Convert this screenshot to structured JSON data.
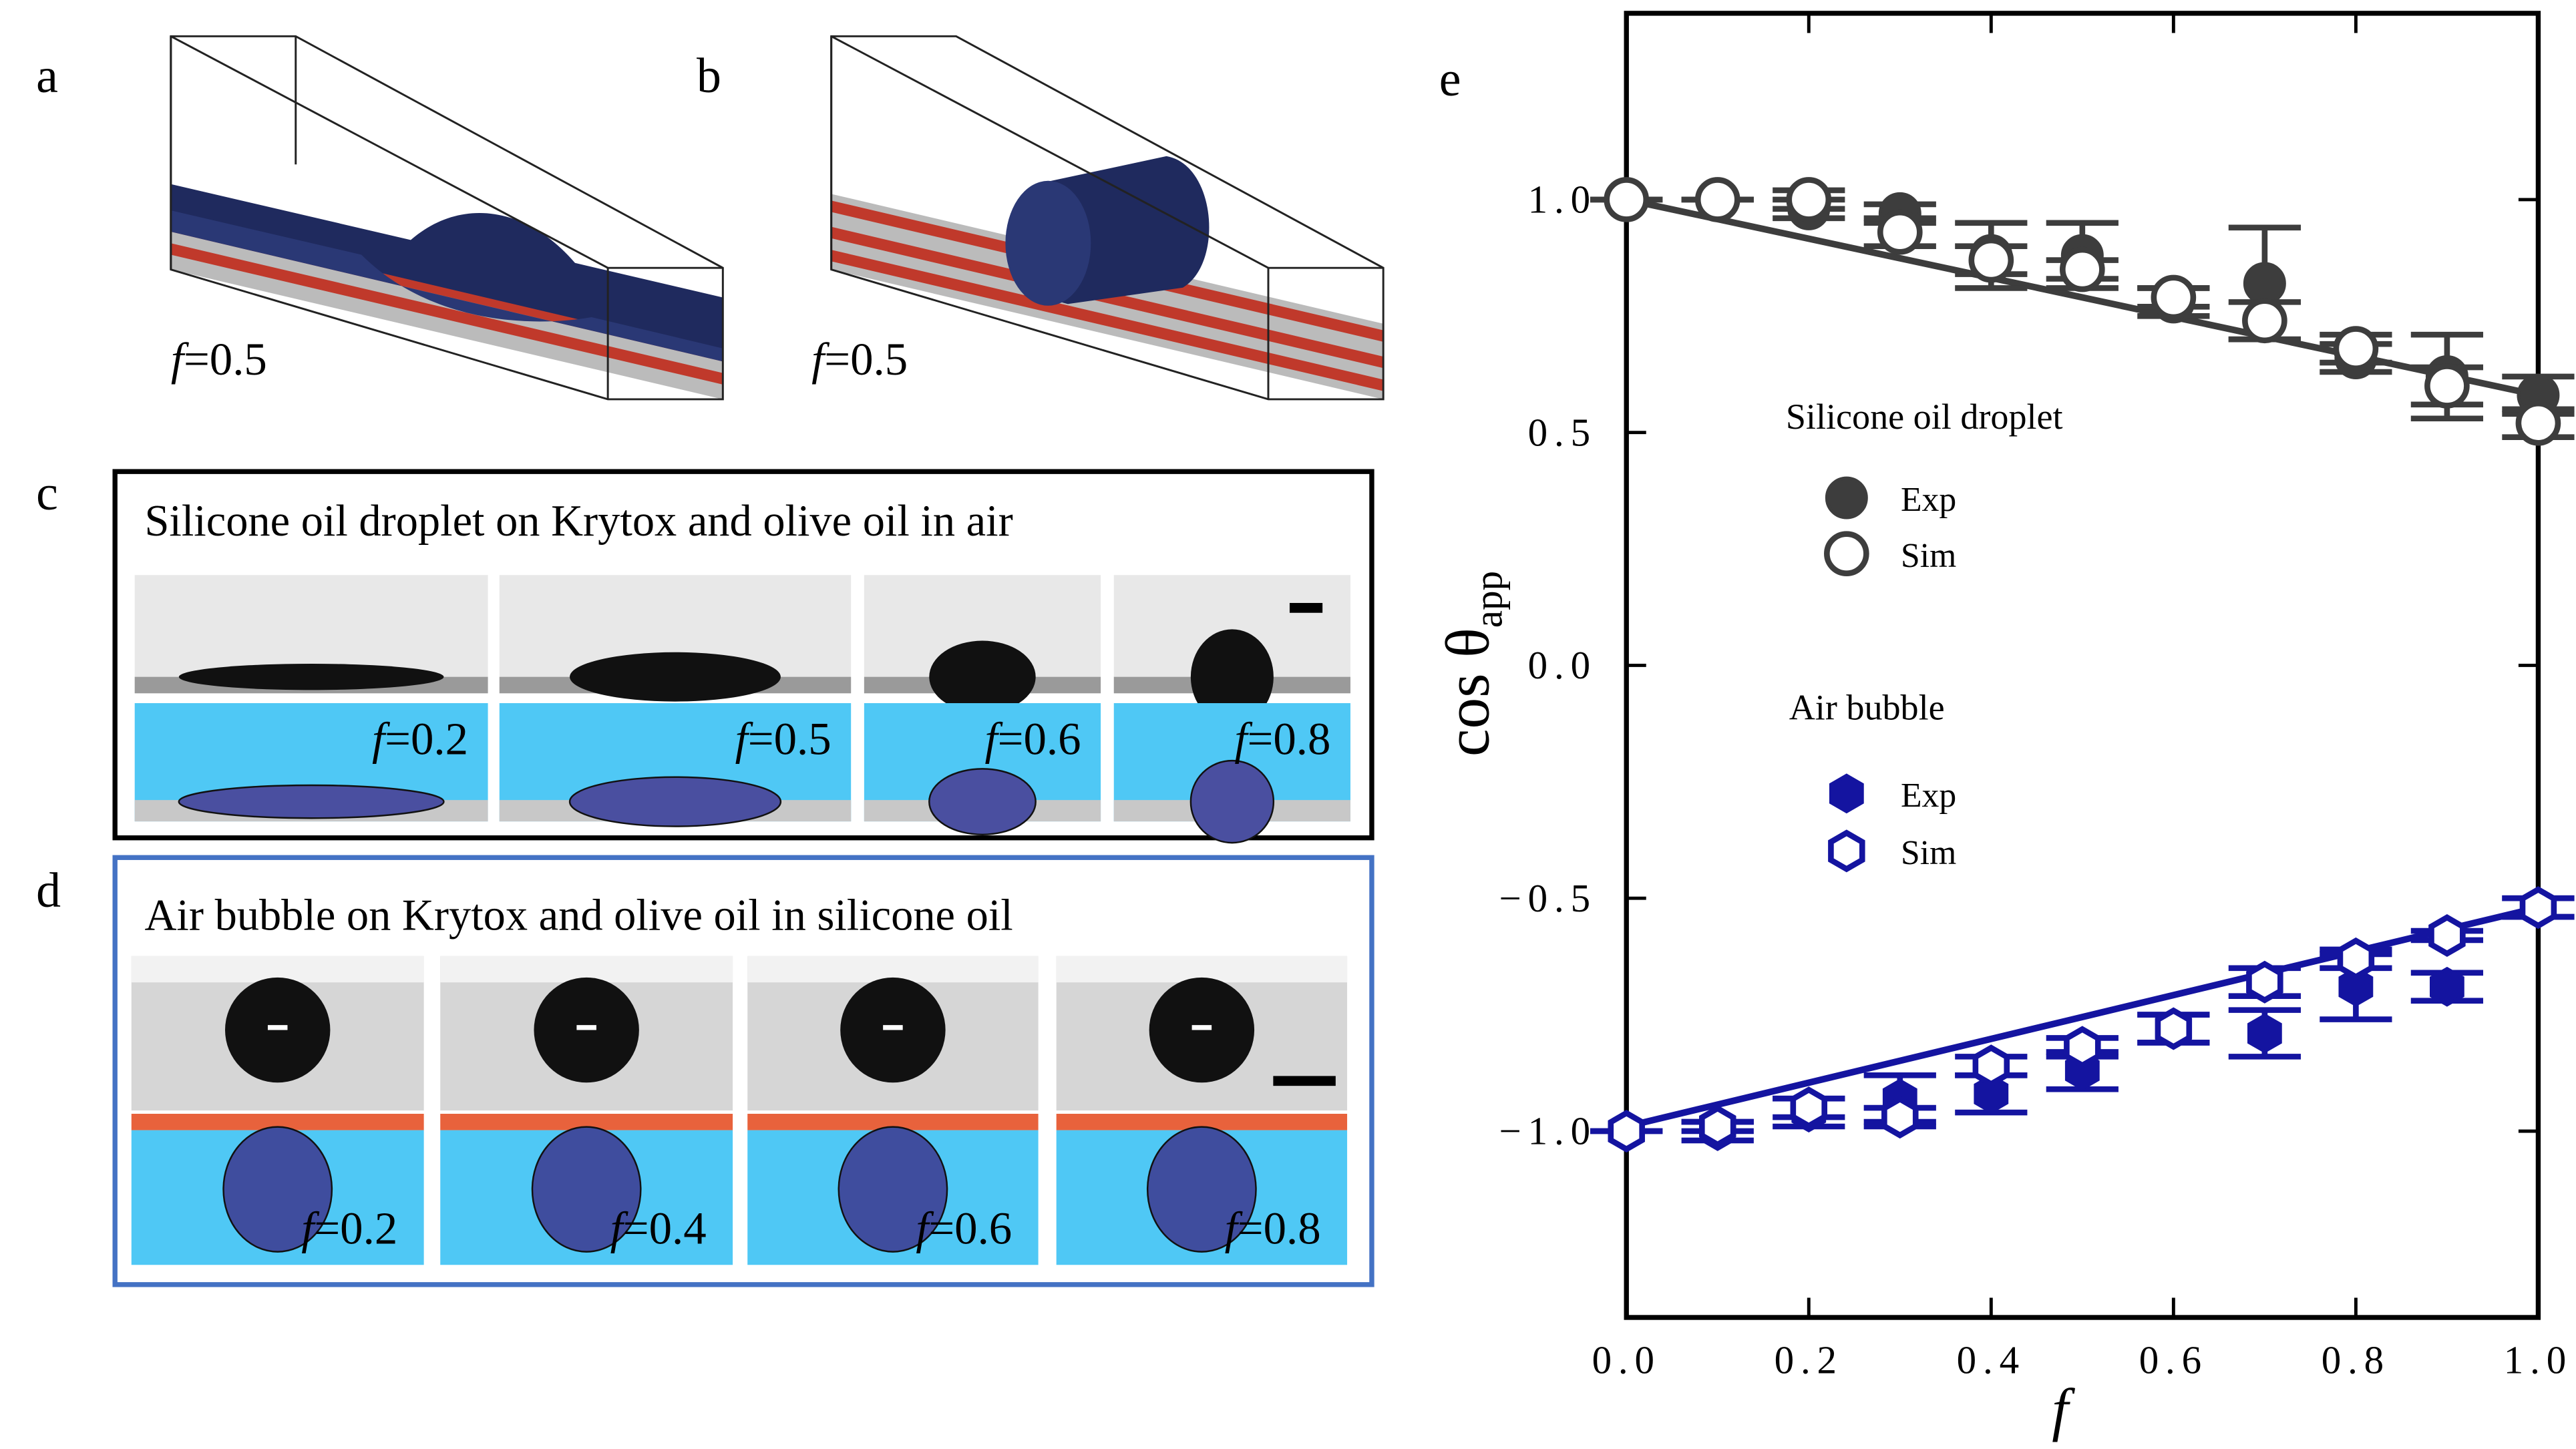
{
  "panels": {
    "a": {
      "label": "a",
      "f": "f",
      "f_value": "=0.5"
    },
    "b": {
      "label": "b",
      "f": "f",
      "f_value": "=0.5"
    },
    "c": {
      "label": "c",
      "title": "Silicone oil droplet on Krytox and olive oil in air",
      "frames": [
        {
          "f": "f",
          "value": "=0.2"
        },
        {
          "f": "f",
          "value": "=0.5"
        },
        {
          "f": "f",
          "value": "=0.6"
        },
        {
          "f": "f",
          "value": "=0.8"
        }
      ]
    },
    "d": {
      "label": "d",
      "title": "Air bubble on Krytox and olive oil in silicone oil",
      "frames": [
        {
          "f": "f",
          "value": "=0.2"
        },
        {
          "f": "f",
          "value": "=0.4"
        },
        {
          "f": "f",
          "value": "=0.6"
        },
        {
          "f": "f",
          "value": "=0.8"
        }
      ]
    }
  },
  "chart_data": {
    "type": "scatter",
    "panel_label": "e",
    "xlabel": "f",
    "ylabel": "cos θ",
    "ylabel_subscript": "app",
    "xlim": [
      0,
      1
    ],
    "ylim": [
      -1.4,
      1.4
    ],
    "xticks": [
      {
        "value": 0,
        "label": "0.0"
      },
      {
        "value": 0.2,
        "label": "0.2"
      },
      {
        "value": 0.4,
        "label": "0.4"
      },
      {
        "value": 0.6,
        "label": "0.6"
      },
      {
        "value": 0.8,
        "label": "0.8"
      },
      {
        "value": 1,
        "label": "1.0"
      }
    ],
    "yticks": [
      {
        "value": -1,
        "label": "−1.0"
      },
      {
        "value": -0.5,
        "label": "−0.5"
      },
      {
        "value": 0,
        "label": "0.0"
      },
      {
        "value": 0.5,
        "label": "0.5"
      },
      {
        "value": 1,
        "label": "1.0"
      }
    ],
    "x": [
      0,
      0.1,
      0.2,
      0.3,
      0.4,
      0.5,
      0.6,
      0.7,
      0.8,
      0.9,
      1.0
    ],
    "series_groups": [
      {
        "title": "Silicone oil droplet",
        "series": [
          {
            "name": "Exp",
            "color": "#3d3d3d",
            "marker": "circle",
            "filled": true,
            "values": [
              1.0,
              1.0,
              0.98,
              0.97,
              0.88,
              0.88,
              0.78,
              0.82,
              0.66,
              0.62,
              0.58
            ],
            "errors": [
              0,
              0,
              0.02,
              0.02,
              0.07,
              0.07,
              0.03,
              0.12,
              0.03,
              0.09,
              0.04
            ]
          },
          {
            "name": "Sim",
            "color": "#3d3d3d",
            "marker": "circle",
            "filled": false,
            "values": [
              1.0,
              1.0,
              1.0,
              0.93,
              0.87,
              0.85,
              0.79,
              0.74,
              0.68,
              0.6,
              0.52
            ],
            "errors": [
              0,
              0,
              0.02,
              0.03,
              0.03,
              0.02,
              0.02,
              0.04,
              0.03,
              0.04,
              0.03
            ]
          }
        ]
      },
      {
        "title": "Air bubble",
        "series": [
          {
            "name": "Exp",
            "color": "#1414a0",
            "marker": "hexagon",
            "filled": true,
            "values": [
              -1.0,
              -1.0,
              -0.96,
              -0.93,
              -0.92,
              -0.87,
              -0.78,
              -0.79,
              -0.69,
              -0.69,
              -0.52
            ],
            "errors": [
              0,
              0.02,
              0.03,
              0.05,
              0.04,
              0.04,
              0.03,
              0.05,
              0.07,
              0.03,
              0.02
            ]
          },
          {
            "name": "Sim",
            "color": "#1414a0",
            "marker": "hexagon",
            "filled": false,
            "values": [
              -1.0,
              -0.99,
              -0.95,
              -0.97,
              -0.86,
              -0.82,
              -0.78,
              -0.68,
              -0.63,
              -0.58,
              -0.52
            ],
            "errors": [
              0,
              0.01,
              0.02,
              0.02,
              0.02,
              0.02,
              0.03,
              0.03,
              0.02,
              0.01,
              0.02
            ]
          }
        ]
      }
    ],
    "fits": [
      {
        "color": "#3d3d3d",
        "x": [
          0,
          1
        ],
        "values": [
          1.0,
          0.58
        ]
      },
      {
        "color": "#1414a0",
        "x": [
          0,
          1
        ],
        "values": [
          -0.99,
          -0.52
        ]
      }
    ]
  }
}
